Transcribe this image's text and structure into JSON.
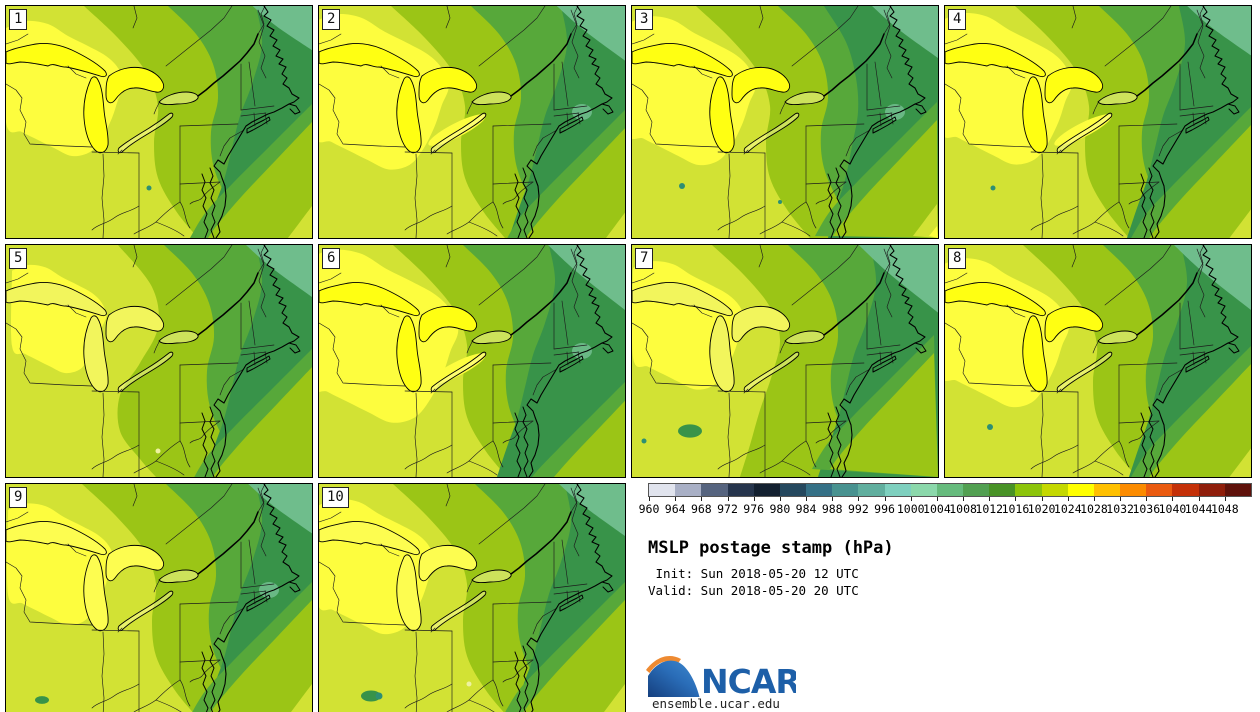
{
  "panels": [
    {
      "label": "1"
    },
    {
      "label": "2"
    },
    {
      "label": "3"
    },
    {
      "label": "4"
    },
    {
      "label": "5"
    },
    {
      "label": "6"
    },
    {
      "label": "7"
    },
    {
      "label": "8"
    },
    {
      "label": "9"
    },
    {
      "label": "10"
    }
  ],
  "legend": {
    "title": "MSLP postage stamp (hPa)",
    "init_line": " Init: Sun 2018-05-20 12 UTC",
    "valid_line": "Valid: Sun 2018-05-20 20 UTC",
    "colorbar": {
      "unit": "hPa",
      "ticks": [
        "960",
        "964",
        "968",
        "972",
        "976",
        "980",
        "984",
        "988",
        "992",
        "996",
        "1000",
        "1004",
        "1008",
        "1012",
        "1016",
        "1020",
        "1024",
        "1028",
        "1032",
        "1036",
        "1040",
        "1044",
        "1048"
      ],
      "colors": [
        "#e1e4ee",
        "#a9b0c6",
        "#56647f",
        "#26354d",
        "#132030",
        "#25485e",
        "#357086",
        "#489290",
        "#61af9f",
        "#7ed0bf",
        "#8bd8ab",
        "#66bb7d",
        "#52a052",
        "#489226",
        "#8cc40a",
        "#c4d800",
        "#ffff00",
        "#ffc000",
        "#fb8b00",
        "#ea5a10",
        "#c43008",
        "#8f1e0b",
        "#5f120b"
      ]
    }
  },
  "branding": {
    "logo_text": "NCAR",
    "url": "ensemble.ucar.edu",
    "logo_blue": "#1d5fa8",
    "logo_blue_dark": "#153f7e",
    "logo_orange": "#ee8a31"
  },
  "map_palette": {
    "band_1024_1028": "#fdfd3e",
    "band_1020_1024": "#d2e234",
    "band_1016_1020": "#9bc516",
    "band_1012_1016": "#57a83a",
    "band_1008_1012": "#389349",
    "band_1004_1008": "#6fbd8c",
    "lake_highlight": "#ffff12",
    "water_speck": "#2e8f73",
    "pale_speck": "#eef2a0",
    "boundary_line": "#1c1c1c",
    "coast_line": "#000000"
  }
}
